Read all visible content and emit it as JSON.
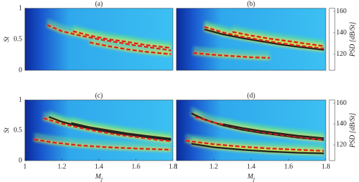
{
  "chart_data": [
    {
      "type": "heatmap",
      "title": "(a)",
      "ylabel": "St",
      "xlim": [
        1,
        1.8
      ],
      "ylim": [
        0,
        1
      ],
      "yticks": [
        0,
        0.5,
        1
      ],
      "series": [
        {
          "color": "#e02020",
          "x": [
            1.12,
            1.2,
            1.3,
            1.4,
            1.5,
            1.6,
            1.7,
            1.79
          ],
          "values": [
            0.73,
            0.63,
            0.56,
            0.5,
            0.45,
            0.4,
            0.36,
            0.32
          ]
        },
        {
          "color": "#e02020",
          "x": [
            1.26,
            1.35,
            1.45,
            1.55,
            1.65,
            1.79
          ],
          "values": [
            0.63,
            0.56,
            0.5,
            0.46,
            0.41,
            0.36
          ]
        },
        {
          "color": "#e02020",
          "x": [
            1.35,
            1.45,
            1.55,
            1.65,
            1.79
          ],
          "values": [
            0.45,
            0.39,
            0.34,
            0.3,
            0.26
          ]
        }
      ]
    },
    {
      "type": "heatmap",
      "title": "(b)",
      "xlim": [
        1,
        1.8
      ],
      "ylim": [
        0,
        1
      ],
      "colorbar": {
        "label": "PSD [dB/St]",
        "lim": [
          105,
          163
        ],
        "ticks": [
          120,
          140,
          160
        ]
      },
      "series": [
        {
          "color": "#222222",
          "x": [
            1.15,
            1.25,
            1.35,
            1.45,
            1.55,
            1.65,
            1.79
          ],
          "values": [
            0.66,
            0.58,
            0.52,
            0.47,
            0.42,
            0.38,
            0.33
          ]
        },
        {
          "color": "#e02020",
          "x": [
            1.15,
            1.25,
            1.35,
            1.45,
            1.55,
            1.65,
            1.79
          ],
          "values": [
            0.7,
            0.61,
            0.54,
            0.49,
            0.44,
            0.4,
            0.35
          ]
        },
        {
          "color": "#e02020",
          "x": [
            1.3,
            1.4,
            1.5,
            1.6,
            1.79
          ],
          "values": [
            0.62,
            0.56,
            0.51,
            0.47,
            0.39
          ]
        },
        {
          "color": "#e02020",
          "x": [
            1.09,
            1.2,
            1.3,
            1.4,
            1.5
          ],
          "values": [
            0.28,
            0.25,
            0.23,
            0.21,
            0.2
          ]
        }
      ]
    },
    {
      "type": "heatmap",
      "title": "(c)",
      "xlabel": "M",
      "xlabel_sub": "j",
      "ylabel": "St",
      "xlim": [
        1,
        1.8
      ],
      "ylim": [
        0,
        1
      ],
      "xticks": [
        1,
        1.2,
        1.4,
        1.6,
        1.8
      ],
      "yticks": [
        0,
        0.5,
        1
      ],
      "series": [
        {
          "color": "#222222",
          "x": [
            1.13,
            1.2,
            1.3,
            1.4,
            1.5,
            1.6,
            1.7,
            1.79
          ],
          "values": [
            0.72,
            0.64,
            0.56,
            0.5,
            0.45,
            0.41,
            0.37,
            0.34
          ]
        },
        {
          "color": "#e02020",
          "x": [
            1.1,
            1.2,
            1.3,
            1.4,
            1.5,
            1.6,
            1.7,
            1.79
          ],
          "values": [
            0.7,
            0.61,
            0.54,
            0.48,
            0.43,
            0.39,
            0.35,
            0.32
          ]
        },
        {
          "color": "#222222",
          "x": [
            1.25,
            1.35,
            1.45,
            1.55,
            1.65,
            1.79
          ],
          "values": [
            0.62,
            0.55,
            0.5,
            0.45,
            0.41,
            0.36
          ]
        },
        {
          "color": "#e02020",
          "x": [
            1.05,
            1.15,
            1.3,
            1.45,
            1.6,
            1.79
          ],
          "values": [
            0.35,
            0.3,
            0.25,
            0.22,
            0.2,
            0.18
          ]
        }
      ]
    },
    {
      "type": "heatmap",
      "title": "(d)",
      "xlabel": "M",
      "xlabel_sub": "j",
      "xlim": [
        1,
        1.8
      ],
      "ylim": [
        0,
        1
      ],
      "xticks": [
        1,
        1.2,
        1.4,
        1.6,
        1.8
      ],
      "colorbar": {
        "label": "PSD [dB/St]",
        "lim": [
          105,
          163
        ],
        "ticks": [
          120,
          140,
          160
        ]
      },
      "series": [
        {
          "color": "#222222",
          "x": [
            1.08,
            1.15,
            1.25,
            1.35,
            1.45,
            1.55,
            1.65,
            1.79
          ],
          "values": [
            0.78,
            0.68,
            0.58,
            0.51,
            0.46,
            0.42,
            0.38,
            0.34
          ]
        },
        {
          "color": "#e02020",
          "x": [
            1.1,
            1.2,
            1.3,
            1.4,
            1.5,
            1.6,
            1.7,
            1.79
          ],
          "values": [
            0.72,
            0.63,
            0.56,
            0.5,
            0.45,
            0.41,
            0.37,
            0.34
          ]
        },
        {
          "color": "#222222",
          "x": [
            1.25,
            1.35,
            1.45,
            1.55,
            1.65,
            1.79
          ],
          "values": [
            0.6,
            0.54,
            0.49,
            0.45,
            0.41,
            0.37
          ]
        },
        {
          "color": "#222222",
          "x": [
            1.08,
            1.2,
            1.35,
            1.5,
            1.65,
            1.79
          ],
          "values": [
            0.28,
            0.22,
            0.18,
            0.15,
            0.13,
            0.12
          ]
        },
        {
          "color": "#e02020",
          "x": [
            1.05,
            1.2,
            1.35,
            1.5,
            1.65,
            1.79
          ],
          "values": [
            0.33,
            0.27,
            0.23,
            0.2,
            0.18,
            0.16
          ]
        }
      ]
    }
  ]
}
